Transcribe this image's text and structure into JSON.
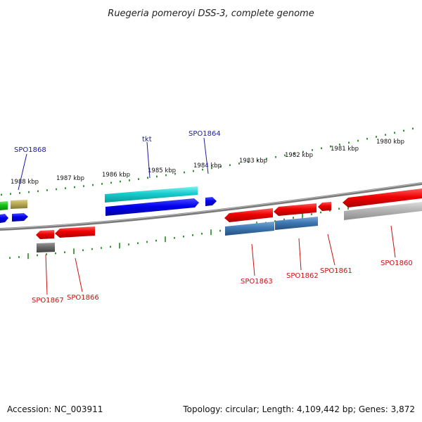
{
  "title": "Ruegeria pomeroyi DSS-3, complete genome",
  "footer": {
    "accession": "Accession: NC_003911",
    "summary": "Topology: circular; Length: 4,109,442 bp; Genes: 3,872"
  },
  "scale": {
    "kbp_labels": [
      "1988 kbp",
      "1987 kbp",
      "1986 kbp",
      "1985 kbp",
      "1984 kbp",
      "1983 kbp",
      "1982 kbp",
      "1981 kbp",
      "1980 kbp"
    ]
  },
  "colors": {
    "backbone": "#777777",
    "ticks": "#1e8a1e",
    "forward_label": "#1a1aa0",
    "reverse_label": "#cc1111"
  },
  "genes_forward": [
    {
      "name": "SPO1868",
      "label": "SPO1868"
    },
    {
      "name": "tkt",
      "label": "tkt"
    },
    {
      "name": "SPO1864",
      "label": "SPO1864"
    }
  ],
  "genes_reverse": [
    {
      "name": "SPO1867",
      "label": "SPO1867"
    },
    {
      "name": "SPO1866",
      "label": "SPO1866"
    },
    {
      "name": "SPO1863",
      "label": "SPO1863"
    },
    {
      "name": "SPO1862",
      "label": "SPO1862"
    },
    {
      "name": "SPO1861",
      "label": "SPO1861"
    },
    {
      "name": "SPO1860",
      "label": "SPO1860"
    }
  ]
}
